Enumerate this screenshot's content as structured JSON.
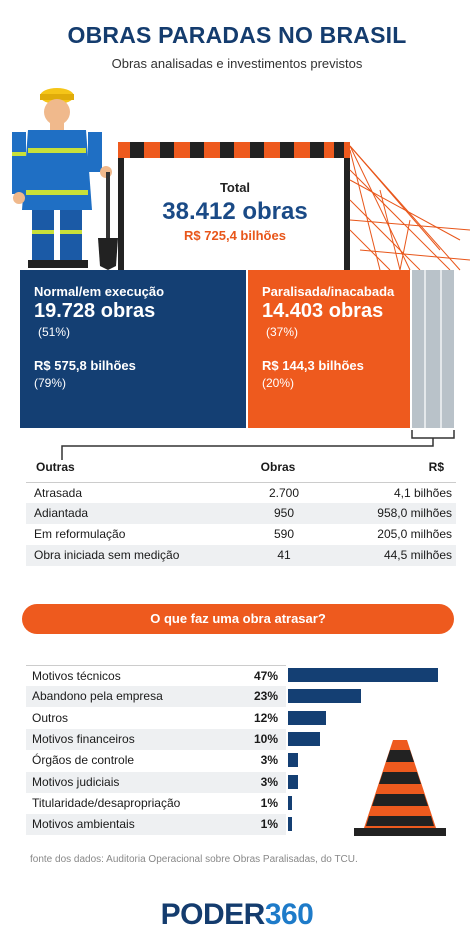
{
  "title": "OBRAS PARADAS NO BRASIL",
  "subtitle": "Obras analisadas e investimentos previstos",
  "total": {
    "label": "Total",
    "obras": "38.412 obras",
    "value": "R$ 725,4 bilhões"
  },
  "normal": {
    "label": "Normal/em execução",
    "obras": "19.728 obras",
    "pct": "(51%)",
    "value": "R$ 575,8 bilhões",
    "value_pct": "(79%)"
  },
  "parada": {
    "label": "Paralisada/inacabada",
    "obras": "14.403 obras",
    "pct": "(37%)",
    "value": "R$ 144,3 bilhões",
    "value_pct": "(20%)"
  },
  "outras_table": {
    "headers": [
      "Outras",
      "Obras",
      "R$"
    ],
    "rows": [
      [
        "Atrasada",
        "2.700",
        "4,1 bilhões"
      ],
      [
        "Adiantada",
        "950",
        "958,0 milhões"
      ],
      [
        "Em reformulação",
        "590",
        "205,0 milhões"
      ],
      [
        "Obra iniciada sem medição",
        "41",
        "44,5 milhões"
      ]
    ]
  },
  "question": "O que faz uma obra atrasar?",
  "chart_data": {
    "type": "bar",
    "categories": [
      "Motivos técnicos",
      "Abandono pela empresa",
      "Outros",
      "Motivos financeiros",
      "Órgãos de controle",
      "Motivos judiciais",
      "Titularidade/desapropriação",
      "Motivos ambientais"
    ],
    "values": [
      47,
      23,
      12,
      10,
      3,
      3,
      1,
      1
    ],
    "labels": [
      "47%",
      "23%",
      "12%",
      "10%",
      "3%",
      "3%",
      "1%",
      "1%"
    ]
  },
  "source": "fonte dos dados: Auditoria Operacional sobre Obras Paralisadas, do TCU.",
  "logo": {
    "part1": "PODER",
    "part2": "360"
  },
  "colors": {
    "navy": "#143f73",
    "orange": "#ee5a1e",
    "gray": "#b9c2c9"
  }
}
